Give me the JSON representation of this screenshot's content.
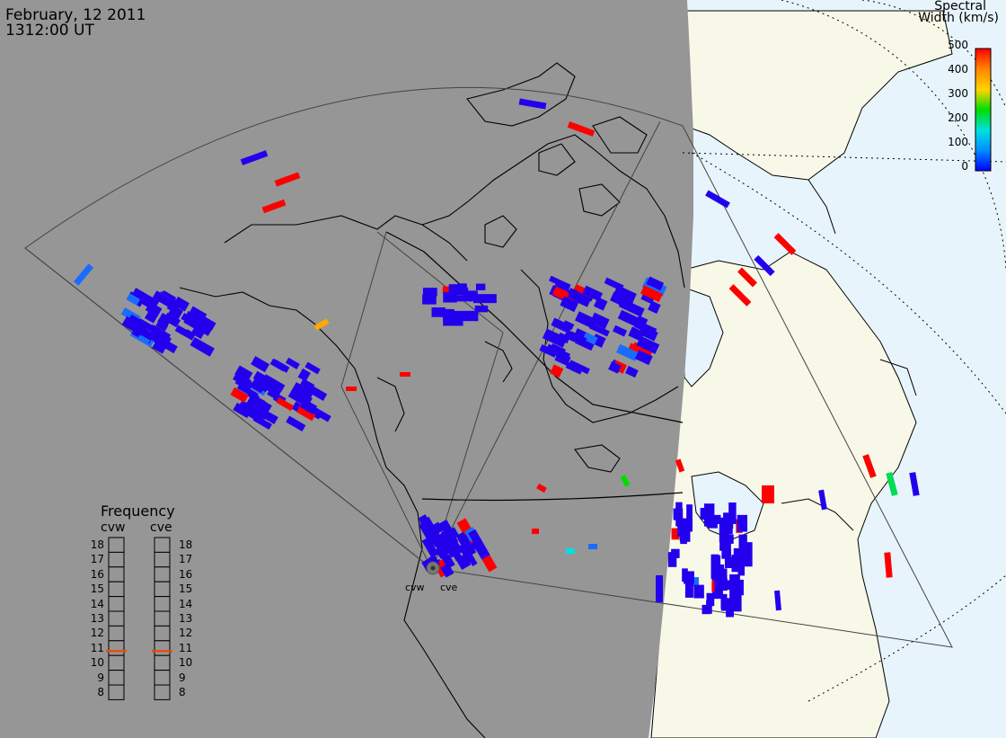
{
  "header": {
    "date": "February, 12 2011",
    "time": "1312:00 UT"
  },
  "colorbar": {
    "title_line1": "Spectral",
    "title_line2": "Width (km/s)",
    "ticks": [
      "500",
      "400",
      "300",
      "200",
      "100",
      "0"
    ],
    "colors": [
      "#ff0000",
      "#ff8800",
      "#ffd400",
      "#00dd00",
      "#00e0e0",
      "#0090ff",
      "#0000ff"
    ]
  },
  "frequency_panel": {
    "title": "Frequency",
    "radars": [
      "cvw",
      "cve"
    ],
    "levels": [
      "18",
      "17",
      "16",
      "15",
      "14",
      "13",
      "12",
      "11",
      "10",
      "9",
      "8"
    ],
    "marker_value": "11",
    "marker_color": "#e05010"
  },
  "radars": [
    {
      "code": "cvw",
      "marker": "radar-site-dot"
    },
    {
      "code": "cve",
      "marker": "radar-site-dot"
    }
  ],
  "map_colors": {
    "night": "#969696",
    "day_land": "#f8f8e8",
    "day_ocean": "#e8f4fc",
    "scatter_low": "#2200ee",
    "scatter_high": "#ff0000"
  }
}
